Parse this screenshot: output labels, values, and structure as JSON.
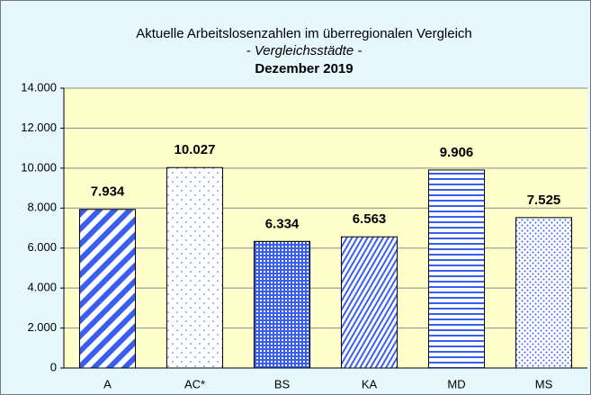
{
  "chart_data": {
    "type": "bar",
    "title": "Aktuelle Arbeitslosenzahlen im überregionalen Vergleich",
    "subtitle": "- Vergleichsstädte -",
    "period": "Dezember 2019",
    "categories": [
      "A",
      "AC*",
      "BS",
      "KA",
      "MD",
      "MS"
    ],
    "values": [
      7934,
      10027,
      6334,
      6563,
      9906,
      7525
    ],
    "value_labels": [
      "7.934",
      "10.027",
      "6.334",
      "6.563",
      "9.906",
      "7.525"
    ],
    "color": "#3a5ff0",
    "ylim": [
      0,
      14000
    ],
    "yticks": [
      0,
      {
        "value": 2000,
        "label": "2.000"
      },
      {
        "value": 4000,
        "label": "4.000"
      },
      {
        "value": 6000,
        "label": "6.000"
      },
      {
        "value": 8000,
        "label": "8.000"
      },
      {
        "value": 10000,
        "label": "10.000"
      },
      {
        "value": 12000,
        "label": "12.000"
      },
      {
        "value": 14000,
        "label": "14.000"
      }
    ],
    "grid": true
  }
}
